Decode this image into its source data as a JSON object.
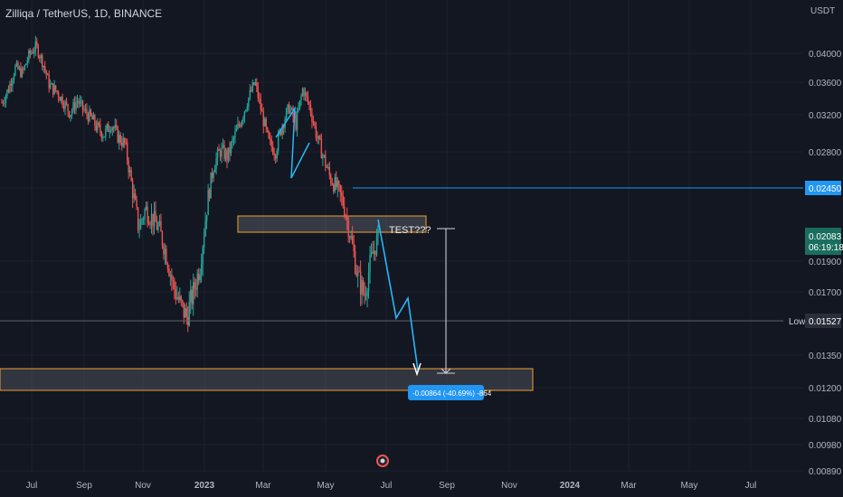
{
  "header": {
    "title": "Zilliqa / TetherUS, 1D, BINANCE"
  },
  "axis": {
    "currency": "USDT"
  },
  "colors": {
    "background": "#131722",
    "grid": "#1e222d",
    "up": "#26a69a",
    "down": "#ef5350",
    "blue": "#2196f3",
    "orange": "#f0a030",
    "white": "#d1d4dc",
    "path": "#29b6f6"
  },
  "chart_data": {
    "type": "candlestick",
    "y_ticks": [
      "0.04000",
      "0.03600",
      "0.03200",
      "0.02800",
      "0.02450",
      "0.01900",
      "0.01700",
      "0.01527",
      "0.01350",
      "0.01200",
      "0.01080",
      "0.00980",
      "0.00890"
    ],
    "x_ticks": [
      "Jul",
      "Sep",
      "Nov",
      "2023",
      "Mar",
      "May",
      "Jul",
      "Sep",
      "Nov",
      "2024",
      "Mar",
      "May",
      "Jul"
    ],
    "price_labels": {
      "resistance": "0.02450",
      "current": "0.02083",
      "countdown": "06:19:18",
      "low_label": "Low",
      "low_value": "0.01527"
    },
    "annotations": {
      "test_text": "TEST???",
      "measure_text": "-0.00864 (-40.69%) -864"
    },
    "close_series": [
      0.0335,
      0.0352,
      0.0381,
      0.0372,
      0.0398,
      0.041,
      0.0387,
      0.0355,
      0.0349,
      0.0336,
      0.0322,
      0.0338,
      0.0325,
      0.0317,
      0.0305,
      0.0299,
      0.0311,
      0.0296,
      0.0288,
      0.0247,
      0.0215,
      0.0229,
      0.0222,
      0.0214,
      0.0196,
      0.0175,
      0.0163,
      0.0155,
      0.017,
      0.0188,
      0.0232,
      0.0268,
      0.0282,
      0.0275,
      0.0296,
      0.0315,
      0.0339,
      0.036,
      0.0322,
      0.029,
      0.0281,
      0.031,
      0.0329,
      0.031,
      0.0352,
      0.033,
      0.0298,
      0.0275,
      0.0255,
      0.0245,
      0.0232,
      0.0208,
      0.018,
      0.0168,
      0.0192,
      0.0208
    ]
  }
}
